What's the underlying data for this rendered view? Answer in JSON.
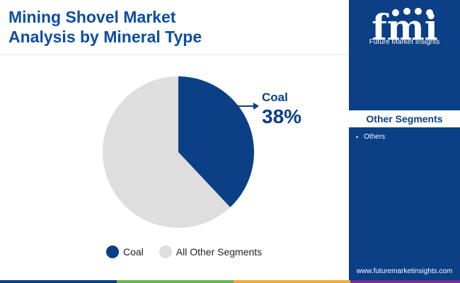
{
  "title_lines": [
    "Mining Shovel Market",
    "Analysis by Mineral Type"
  ],
  "chart_data": {
    "type": "pie",
    "slices": [
      {
        "label": "Coal",
        "value": 38,
        "color": "#0b3f86"
      },
      {
        "label": "All Other Segments",
        "value": 62,
        "color": "#dedede"
      }
    ],
    "annotation": {
      "label": "Coal",
      "value_text": "38%"
    },
    "legend": [
      "Coal",
      "All Other Segments"
    ],
    "legend_position": "bottom"
  },
  "brand": {
    "logo_letters": "fmi",
    "name": "Future Market Insights",
    "website": "www.futuremarketinsights.com"
  },
  "sidebar": {
    "heading": "Other Segments",
    "items": [
      "Others"
    ]
  },
  "colors": {
    "accent": "#0b3f86",
    "title": "#0b4ea2",
    "bottom_bar": [
      "#0b3f86",
      "#6bb34a",
      "#f2a93b",
      "#7b2d8e",
      "#0b3f86"
    ]
  }
}
